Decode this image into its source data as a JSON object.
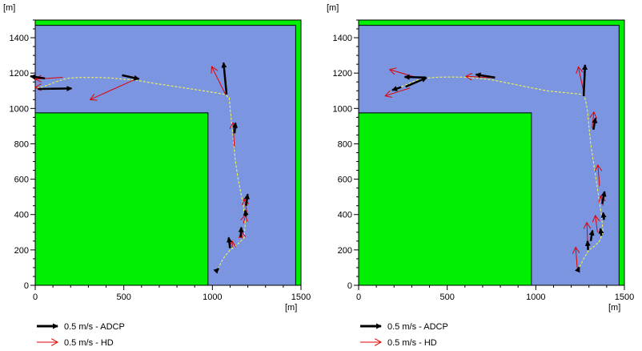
{
  "legend": [
    {
      "label": "0.5 m/s - ADCP",
      "color": "#000000"
    },
    {
      "label": "0.5 m/s - HD",
      "color": "#e00000"
    }
  ],
  "chart_data": [
    {
      "type": "scatter",
      "title": "",
      "xlabel": "[m]",
      "ylabel": "[m]",
      "xlim": [
        0,
        1500
      ],
      "ylim": [
        0,
        1500
      ],
      "xticks": [
        "0",
        "500",
        "1000",
        "1500"
      ],
      "yticks": [
        "0",
        "200",
        "400",
        "600",
        "800",
        "1000",
        "1200",
        "1400"
      ],
      "grid": false,
      "legend_position": "bottom-left",
      "colors": {
        "land": "#00ee00",
        "water": "#7b95e0",
        "track": "#ffff44",
        "adcp": "#000000",
        "hd": "#e00000"
      },
      "track": [
        [
          10,
          1115
        ],
        [
          50,
          1125
        ],
        [
          90,
          1140
        ],
        [
          130,
          1155
        ],
        [
          180,
          1170
        ],
        [
          240,
          1175
        ],
        [
          300,
          1175
        ],
        [
          360,
          1175
        ],
        [
          430,
          1172
        ],
        [
          500,
          1165
        ],
        [
          570,
          1160
        ],
        [
          650,
          1145
        ],
        [
          750,
          1130
        ],
        [
          850,
          1115
        ],
        [
          950,
          1100
        ],
        [
          1010,
          1090
        ],
        [
          1070,
          1080
        ],
        [
          1095,
          1060
        ],
        [
          1100,
          1000
        ],
        [
          1110,
          900
        ],
        [
          1120,
          800
        ],
        [
          1130,
          700
        ],
        [
          1145,
          600
        ],
        [
          1165,
          500
        ],
        [
          1175,
          450
        ],
        [
          1185,
          350
        ],
        [
          1180,
          270
        ],
        [
          1140,
          230
        ],
        [
          1100,
          200
        ],
        [
          1060,
          150
        ],
        [
          1030,
          90
        ]
      ],
      "adcp": [
        {
          "x": 15,
          "y": 1110,
          "u": 190,
          "v": 3
        },
        {
          "x": 55,
          "y": 1170,
          "u": -82,
          "v": 12
        },
        {
          "x": 490,
          "y": 1188,
          "u": 95,
          "v": -21
        },
        {
          "x": 1080,
          "y": 1080,
          "u": -17,
          "v": 178
        },
        {
          "x": 1125,
          "y": 860,
          "u": 5,
          "v": 58
        },
        {
          "x": 1190,
          "y": 450,
          "u": 9,
          "v": 65
        },
        {
          "x": 1190,
          "y": 390,
          "u": -5,
          "v": 33
        },
        {
          "x": 1160,
          "y": 270,
          "u": 3,
          "v": 57
        },
        {
          "x": 1100,
          "y": 210,
          "u": -8,
          "v": 60
        },
        {
          "x": 1030,
          "y": 90,
          "u": 5,
          "v": 5
        }
      ],
      "hd": [
        {
          "x": 10,
          "y": 1120,
          "u": -10,
          "v": 0
        },
        {
          "x": 155,
          "y": 1176,
          "u": -155,
          "v": -10
        },
        {
          "x": 585,
          "y": 1174,
          "u": -275,
          "v": -124
        },
        {
          "x": 1076,
          "y": 1075,
          "u": -80,
          "v": 162
        },
        {
          "x": 1124,
          "y": 785,
          "u": -8,
          "v": 135
        },
        {
          "x": 1195,
          "y": 415,
          "u": -15,
          "v": 75
        },
        {
          "x": 1175,
          "y": 350,
          "u": 12,
          "v": 48
        },
        {
          "x": 1170,
          "y": 265,
          "u": -8,
          "v": 40
        },
        {
          "x": 1112,
          "y": 215,
          "u": 0,
          "v": 35
        }
      ]
    },
    {
      "type": "scatter",
      "title": "",
      "xlabel": "[m]",
      "ylabel": "[m]",
      "xlim": [
        0,
        1500
      ],
      "ylim": [
        0,
        1500
      ],
      "xticks": [
        "0",
        "500",
        "1000",
        "1500"
      ],
      "yticks": [
        "0",
        "200",
        "400",
        "600",
        "800",
        "1000",
        "1200",
        "1400"
      ],
      "grid": false,
      "legend_position": "bottom-left",
      "colors": {
        "land": "#00ee00",
        "water": "#7b95e0",
        "track": "#ffff44",
        "adcp": "#000000",
        "hd": "#e00000"
      },
      "track": [
        [
          200,
          1105
        ],
        [
          260,
          1130
        ],
        [
          330,
          1160
        ],
        [
          390,
          1172
        ],
        [
          450,
          1177
        ],
        [
          520,
          1178
        ],
        [
          600,
          1177
        ],
        [
          680,
          1170
        ],
        [
          760,
          1160
        ],
        [
          860,
          1140
        ],
        [
          960,
          1120
        ],
        [
          1060,
          1100
        ],
        [
          1160,
          1090
        ],
        [
          1260,
          1080
        ],
        [
          1275,
          1070
        ],
        [
          1290,
          1000
        ],
        [
          1300,
          900
        ],
        [
          1310,
          800
        ],
        [
          1325,
          700
        ],
        [
          1340,
          600
        ],
        [
          1355,
          500
        ],
        [
          1370,
          400
        ],
        [
          1380,
          300
        ],
        [
          1360,
          250
        ],
        [
          1330,
          220
        ],
        [
          1300,
          200
        ],
        [
          1270,
          150
        ],
        [
          1240,
          90
        ]
      ],
      "adcp": [
        {
          "x": 240,
          "y": 1120,
          "u": -50,
          "v": -16
        },
        {
          "x": 265,
          "y": 1123,
          "u": 118,
          "v": 50
        },
        {
          "x": 380,
          "y": 1175,
          "u": -120,
          "v": 3
        },
        {
          "x": 770,
          "y": 1175,
          "u": -108,
          "v": 17
        },
        {
          "x": 1270,
          "y": 1070,
          "u": 8,
          "v": 176
        },
        {
          "x": 1325,
          "y": 880,
          "u": 12,
          "v": 65
        },
        {
          "x": 1375,
          "y": 460,
          "u": 13,
          "v": 70
        },
        {
          "x": 1385,
          "y": 370,
          "u": -5,
          "v": 40
        },
        {
          "x": 1370,
          "y": 280,
          "u": -5,
          "v": 40
        },
        {
          "x": 1310,
          "y": 250,
          "u": 10,
          "v": 60
        },
        {
          "x": 1295,
          "y": 200,
          "u": -3,
          "v": 50
        },
        {
          "x": 1240,
          "y": 90,
          "u": 5,
          "v": 12
        }
      ],
      "hd": [
        {
          "x": 290,
          "y": 1116,
          "u": -140,
          "v": -45
        },
        {
          "x": 345,
          "y": 1170,
          "u": -170,
          "v": 50
        },
        {
          "x": 770,
          "y": 1172,
          "u": -165,
          "v": 10
        },
        {
          "x": 1275,
          "y": 1070,
          "u": -35,
          "v": 165
        },
        {
          "x": 1318,
          "y": 890,
          "u": 10,
          "v": 90
        },
        {
          "x": 1360,
          "y": 560,
          "u": -10,
          "v": 120
        },
        {
          "x": 1380,
          "y": 450,
          "u": -15,
          "v": 55
        },
        {
          "x": 1348,
          "y": 300,
          "u": -12,
          "v": 95
        },
        {
          "x": 1293,
          "y": 235,
          "u": -5,
          "v": 120
        },
        {
          "x": 1235,
          "y": 85,
          "u": -10,
          "v": 130
        }
      ]
    }
  ]
}
